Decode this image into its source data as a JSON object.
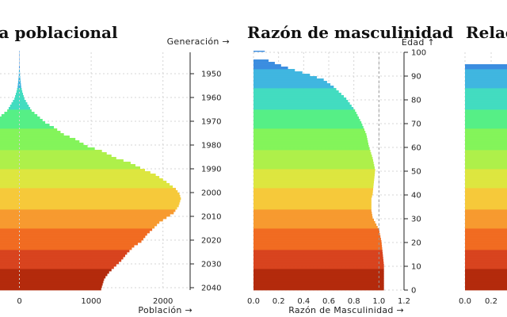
{
  "chart_data": [
    {
      "type": "bar",
      "orientation": "horizontal",
      "title": "ra poblacional",
      "xlabel": "Población →",
      "ylabel": "Generación →",
      "xticks": [
        "0",
        "1000",
        "2000"
      ],
      "yticks": [
        "1950",
        "1960",
        "1970",
        "1980",
        "1990",
        "2000",
        "2010",
        "2020",
        "2030",
        "2040"
      ],
      "xlim": [
        -320,
        2300
      ],
      "y_by_age": {
        "ages": [
          0,
          1,
          2,
          3,
          4,
          5,
          7,
          10,
          12,
          15,
          18,
          20,
          23,
          25,
          28,
          30,
          32,
          35,
          38,
          40,
          42,
          45,
          48,
          50,
          53,
          55,
          58,
          60,
          63,
          65,
          68,
          70,
          73,
          75,
          78,
          80,
          83,
          85,
          88,
          90,
          93,
          95,
          98,
          100
        ],
        "values": [
          1140,
          1150,
          1160,
          1170,
          1180,
          1200,
          1250,
          1350,
          1420,
          1500,
          1600,
          1700,
          1780,
          1850,
          1950,
          2050,
          2150,
          2220,
          2250,
          2230,
          2180,
          2050,
          1900,
          1750,
          1550,
          1350,
          1150,
          950,
          780,
          620,
          480,
          360,
          250,
          170,
          110,
          70,
          40,
          25,
          14,
          8,
          5,
          3,
          2,
          1
        ]
      },
      "generation_of_age": "2040 - age"
    },
    {
      "type": "bar",
      "orientation": "horizontal",
      "title": "Razón de masculinidad",
      "xlabel": "Razón de Masculinidad →",
      "ylabel": "Edad ↑",
      "xticks": [
        "0.0",
        "0.2",
        "0.4",
        "0.6",
        "0.8",
        "1.0",
        "1.2"
      ],
      "yticks": [
        "0",
        "10",
        "20",
        "30",
        "40",
        "50",
        "60",
        "70",
        "80",
        "90",
        "100"
      ],
      "xlim": [
        0,
        1.2
      ],
      "ylim": [
        0,
        100
      ],
      "reference_line": 1.0,
      "y_by_age": {
        "ages": [
          0,
          10,
          20,
          25,
          30,
          33,
          35,
          38,
          40,
          45,
          50,
          55,
          60,
          65,
          70,
          75,
          80,
          85,
          88,
          90,
          92,
          94,
          96,
          97,
          99,
          100
        ],
        "values": [
          1.04,
          1.04,
          1.02,
          1.0,
          0.95,
          0.94,
          0.94,
          0.94,
          0.95,
          0.96,
          0.97,
          0.95,
          0.92,
          0.9,
          0.86,
          0.81,
          0.74,
          0.64,
          0.56,
          0.45,
          0.33,
          0.22,
          0.12,
          0.08,
          0.08,
          0.09
        ]
      }
    },
    {
      "type": "bar",
      "orientation": "horizontal",
      "title": "Relac",
      "xticks": [
        "0.0",
        "0.2"
      ]
    }
  ],
  "colors": {
    "age_scale": [
      "#b32a0c",
      "#d8431e",
      "#f16b21",
      "#f79a2f",
      "#f6c93a",
      "#dde63f",
      "#aef04a",
      "#83f45a",
      "#56ef86",
      "#42dcc0",
      "#3fb6e0",
      "#3b8de0"
    ]
  }
}
